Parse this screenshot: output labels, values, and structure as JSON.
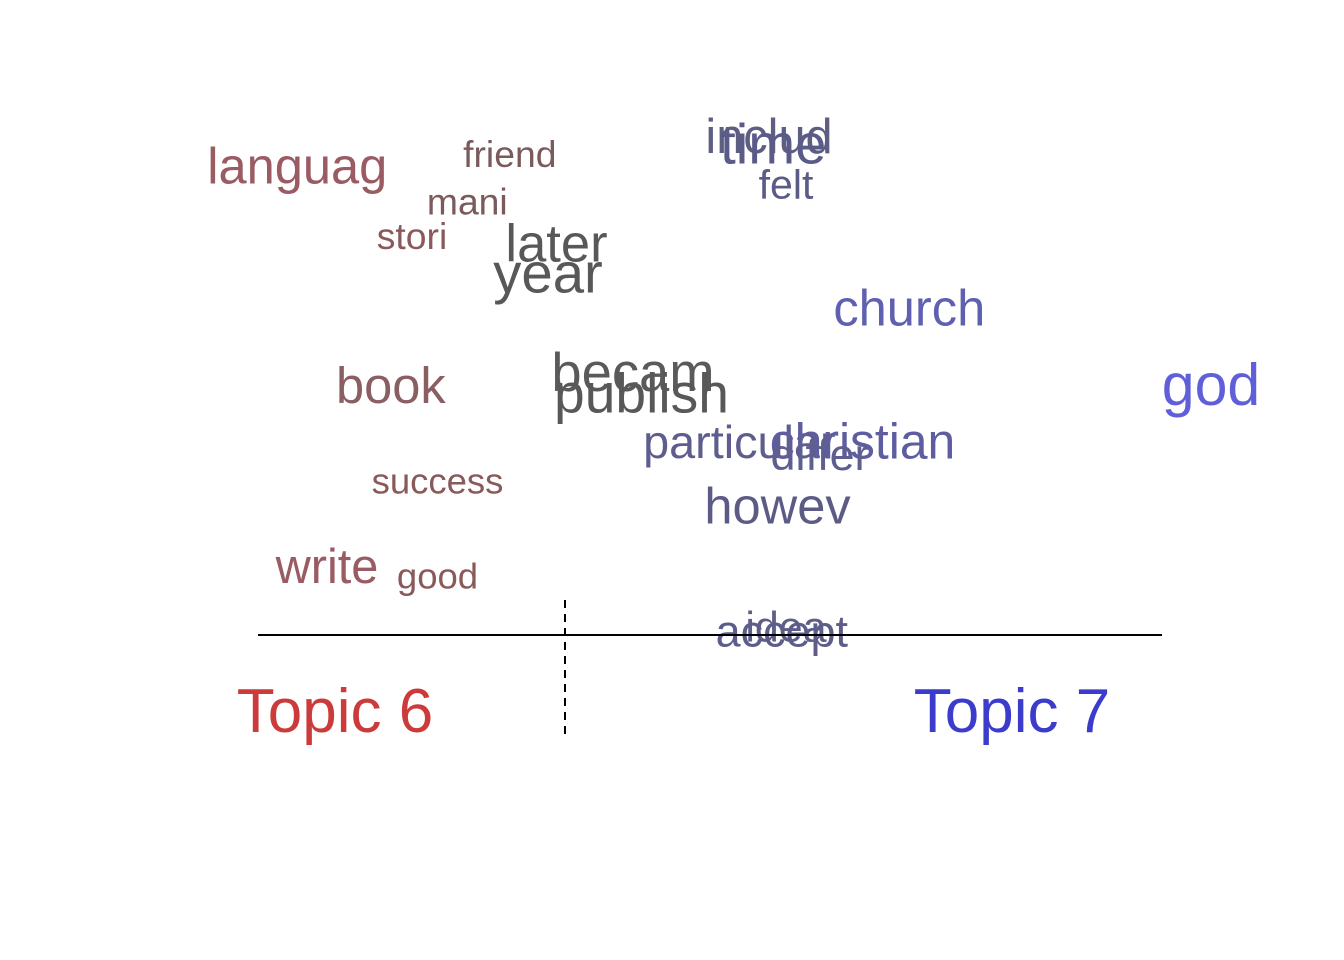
{
  "chart_data": {
    "type": "scatter",
    "title": "",
    "xlabel": "",
    "ylabel": "",
    "topics": {
      "left": {
        "label": "Topic 6",
        "color": "#cc3b3b"
      },
      "right": {
        "label": "Topic 7",
        "color": "#3b3bcc"
      }
    },
    "words": [
      {
        "text": "languag",
        "x": -0.63,
        "y": 0.86,
        "weight": 0.7,
        "color": "#9a5b63"
      },
      {
        "text": "friend",
        "x": -0.13,
        "y": 0.89,
        "weight": 0.35,
        "color": "#7a5a5a"
      },
      {
        "text": "mani",
        "x": -0.23,
        "y": 0.78,
        "weight": 0.35,
        "color": "#7a5a5a"
      },
      {
        "text": "stori",
        "x": -0.36,
        "y": 0.7,
        "weight": 0.35,
        "color": "#8a5a5a"
      },
      {
        "text": "later",
        "x": -0.02,
        "y": 0.68,
        "weight": 0.75,
        "color": "#585858"
      },
      {
        "text": "year",
        "x": -0.04,
        "y": 0.61,
        "weight": 0.85,
        "color": "#585858"
      },
      {
        "text": "book",
        "x": -0.41,
        "y": 0.35,
        "weight": 0.7,
        "color": "#8a5f63"
      },
      {
        "text": "becam",
        "x": 0.16,
        "y": 0.38,
        "weight": 0.8,
        "color": "#5a5a5a"
      },
      {
        "text": "publish",
        "x": 0.18,
        "y": 0.33,
        "weight": 0.82,
        "color": "#585858"
      },
      {
        "text": "success",
        "x": -0.3,
        "y": 0.13,
        "weight": 0.33,
        "color": "#8a5a5a"
      },
      {
        "text": "write",
        "x": -0.56,
        "y": -0.07,
        "weight": 0.65,
        "color": "#9a5b63"
      },
      {
        "text": "good",
        "x": -0.3,
        "y": -0.09,
        "weight": 0.33,
        "color": "#8a5a5a"
      },
      {
        "text": "includ",
        "x": 0.48,
        "y": 0.93,
        "weight": 0.65,
        "color": "#5e5e83"
      },
      {
        "text": "time",
        "x": 0.49,
        "y": 0.91,
        "weight": 0.85,
        "color": "#5b5b8a"
      },
      {
        "text": "felt",
        "x": 0.52,
        "y": 0.82,
        "weight": 0.45,
        "color": "#5b5b88"
      },
      {
        "text": "church",
        "x": 0.81,
        "y": 0.53,
        "weight": 0.7,
        "color": "#6060b0"
      },
      {
        "text": "god",
        "x": 1.52,
        "y": 0.35,
        "weight": 0.92,
        "color": "#5f5fd9"
      },
      {
        "text": "particular",
        "x": 0.41,
        "y": 0.22,
        "weight": 0.6,
        "color": "#5e5e8e"
      },
      {
        "text": "christian",
        "x": 0.7,
        "y": 0.22,
        "weight": 0.68,
        "color": "#5d5da0"
      },
      {
        "text": "differ",
        "x": 0.6,
        "y": 0.19,
        "weight": 0.55,
        "color": "#5e5e90"
      },
      {
        "text": "howev",
        "x": 0.5,
        "y": 0.07,
        "weight": 0.7,
        "color": "#5b5b86"
      },
      {
        "text": "idea",
        "x": 0.52,
        "y": -0.21,
        "weight": 0.5,
        "color": "#5e5e88"
      },
      {
        "text": "accept",
        "x": 0.51,
        "y": -0.22,
        "weight": 0.55,
        "color": "#5d5d8a"
      }
    ]
  }
}
